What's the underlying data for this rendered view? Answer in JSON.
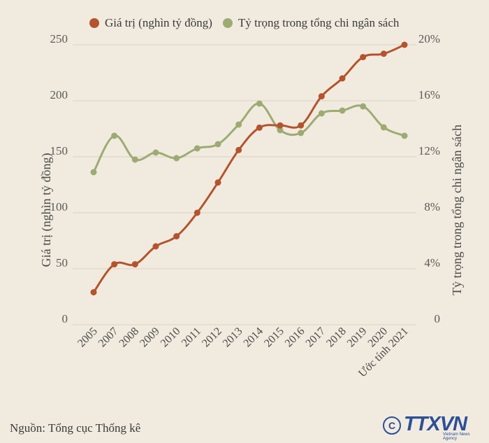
{
  "chart_data": {
    "type": "line",
    "categories": [
      "2005",
      "2007",
      "2008",
      "2009",
      "2010",
      "2011",
      "2012",
      "2013",
      "2014",
      "2015",
      "2016",
      "2017",
      "2018",
      "2019",
      "2020",
      "Ước tính 2021"
    ],
    "series": [
      {
        "name": "Giá trị (nghìn tỷ đồng)",
        "axis": "left",
        "color": "#b5532e",
        "values": [
          29,
          54,
          54,
          70,
          79,
          100,
          127,
          156,
          176,
          178,
          178,
          204,
          220,
          239,
          242,
          250
        ]
      },
      {
        "name": "Tỷ trọng trong tổng chi ngân sách",
        "axis": "right",
        "color": "#9dab73",
        "values": [
          10.9,
          13.5,
          11.8,
          12.3,
          11.9,
          12.6,
          12.9,
          14.3,
          15.8,
          13.9,
          13.7,
          15.1,
          15.3,
          15.6,
          14.1,
          13.5
        ]
      }
    ],
    "ylabel": "Giá trị (nghìn tỷ đồng)",
    "y2label": "Tỷ trọng trong tổng chi ngân sách",
    "ylim": [
      0,
      250
    ],
    "y2lim": [
      0,
      20
    ],
    "yticks": [
      "0",
      "50",
      "100",
      "150",
      "200",
      "250"
    ],
    "y2ticks": [
      "0",
      "4%",
      "8%",
      "12%",
      "16%",
      "20%"
    ],
    "grid": true,
    "legend_position": "top"
  },
  "footer": {
    "source": "Nguồn: Tổng cục Thống kê",
    "logo_text": "TTXVN",
    "logo_subtext": "Vietnam News Agency",
    "logo_symbol": "C"
  }
}
